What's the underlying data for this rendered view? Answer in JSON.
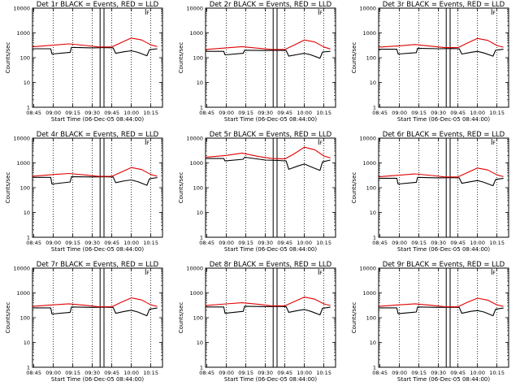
{
  "colors": {
    "events": "#000000",
    "lld": "#e00000",
    "axes": "#000000",
    "background": "#ffffff"
  },
  "chart_data": [
    {
      "type": "line",
      "title": "Det 1r BLACK = Events, RED = LLD",
      "xlabel": "Start Time (06-Dec-05 08:44:00)",
      "ylabel": "Counts/sec",
      "xticks": [
        "08:45",
        "09:00",
        "09:15",
        "09:30",
        "09:45",
        "10:00",
        "10:15"
      ],
      "yticks": [
        "1",
        "10",
        "100",
        "1000",
        "10000"
      ],
      "ylog": true,
      "ylim": [
        1,
        10000
      ],
      "flag_label": "F",
      "series": [
        {
          "color": "#000000",
          "x": [
            "08:44",
            "08:48",
            "08:58",
            "08:59",
            "09:13",
            "09:14",
            "09:30",
            "09:40",
            "09:46",
            "09:48",
            "09:55",
            "10:00",
            "10:05",
            "10:12",
            "10:14",
            "10:20"
          ],
          "y": [
            230,
            230,
            230,
            140,
            165,
            260,
            250,
            255,
            250,
            150,
            175,
            190,
            165,
            120,
            210,
            230
          ]
        },
        {
          "color": "#e00000",
          "x": [
            "08:44",
            "09:00",
            "09:12",
            "09:25",
            "09:35",
            "09:45",
            "09:52",
            "10:00",
            "10:08",
            "10:15",
            "10:20"
          ],
          "y": [
            275,
            320,
            360,
            310,
            270,
            270,
            400,
            620,
            520,
            330,
            280
          ]
        }
      ]
    },
    {
      "type": "line",
      "title": "Det 2r BLACK = Events, RED = LLD",
      "xlabel": "Start Time (06-Dec-05 08:44:00)",
      "ylabel": "Counts/sec",
      "xticks": [
        "08:45",
        "09:00",
        "09:15",
        "09:30",
        "09:45",
        "10:00",
        "10:15"
      ],
      "yticks": [
        "1",
        "10",
        "100",
        "1000",
        "10000"
      ],
      "ylog": true,
      "ylim": [
        1,
        10000
      ],
      "flag_label": "F",
      "series": [
        {
          "color": "#000000",
          "x": [
            "08:44",
            "08:48",
            "08:58",
            "08:59",
            "09:13",
            "09:14",
            "09:30",
            "09:40",
            "09:46",
            "09:48",
            "09:55",
            "10:00",
            "10:05",
            "10:12",
            "10:14",
            "10:20"
          ],
          "y": [
            180,
            180,
            180,
            130,
            150,
            200,
            195,
            200,
            195,
            115,
            135,
            150,
            130,
            95,
            170,
            180
          ]
        },
        {
          "color": "#e00000",
          "x": [
            "08:44",
            "09:00",
            "09:12",
            "09:25",
            "09:35",
            "09:45",
            "09:52",
            "10:00",
            "10:08",
            "10:15",
            "10:20"
          ],
          "y": [
            215,
            250,
            280,
            240,
            215,
            215,
            320,
            520,
            430,
            270,
            225
          ]
        }
      ]
    },
    {
      "type": "line",
      "title": "Det 3r BLACK = Events, RED = LLD",
      "xlabel": "Start Time (06-Dec-05 08:44:00)",
      "ylabel": "Counts/sec",
      "xticks": [
        "08:45",
        "09:00",
        "09:15",
        "09:30",
        "09:45",
        "10:00",
        "10:15"
      ],
      "yticks": [
        "1",
        "10",
        "100",
        "1000",
        "10000"
      ],
      "ylog": true,
      "ylim": [
        1,
        10000
      ],
      "flag_label": "F",
      "series": [
        {
          "color": "#000000",
          "x": [
            "08:44",
            "08:48",
            "08:58",
            "08:59",
            "09:13",
            "09:14",
            "09:30",
            "09:40",
            "09:46",
            "09:48",
            "09:55",
            "10:00",
            "10:05",
            "10:12",
            "10:14",
            "10:20"
          ],
          "y": [
            220,
            220,
            220,
            140,
            160,
            240,
            230,
            235,
            230,
            140,
            165,
            180,
            155,
            115,
            200,
            220
          ]
        },
        {
          "color": "#e00000",
          "x": [
            "08:44",
            "09:00",
            "09:12",
            "09:25",
            "09:35",
            "09:45",
            "09:52",
            "10:00",
            "10:08",
            "10:15",
            "10:20"
          ],
          "y": [
            265,
            300,
            340,
            290,
            255,
            255,
            380,
            600,
            500,
            310,
            265
          ]
        }
      ]
    },
    {
      "type": "line",
      "title": "Det 4r BLACK = Events, RED = LLD",
      "xlabel": "Start Time (06-Dec-05 08:44:00)",
      "ylabel": "Counts/sec",
      "xticks": [
        "08:45",
        "09:00",
        "09:15",
        "09:30",
        "09:45",
        "10:00",
        "10:15"
      ],
      "yticks": [
        "1",
        "10",
        "100",
        "1000",
        "10000"
      ],
      "ylog": true,
      "ylim": [
        1,
        10000
      ],
      "flag_label": "F",
      "series": [
        {
          "color": "#000000",
          "x": [
            "08:44",
            "08:48",
            "08:58",
            "08:59",
            "09:13",
            "09:14",
            "09:30",
            "09:40",
            "09:46",
            "09:48",
            "09:55",
            "10:00",
            "10:05",
            "10:12",
            "10:14",
            "10:20"
          ],
          "y": [
            260,
            260,
            260,
            140,
            170,
            280,
            270,
            275,
            270,
            160,
            190,
            205,
            175,
            125,
            230,
            255
          ]
        },
        {
          "color": "#e00000",
          "x": [
            "08:44",
            "09:00",
            "09:12",
            "09:25",
            "09:35",
            "09:45",
            "09:52",
            "10:00",
            "10:08",
            "10:15",
            "10:20"
          ],
          "y": [
            290,
            340,
            375,
            325,
            285,
            285,
            420,
            650,
            540,
            340,
            290
          ]
        }
      ]
    },
    {
      "type": "line",
      "title": "Det 5r BLACK = Events, RED = LLD",
      "xlabel": "Start Time (06-Dec-05 08:44:00)",
      "ylabel": "Counts/sec",
      "xticks": [
        "08:45",
        "09:00",
        "09:15",
        "09:30",
        "09:45",
        "10:00",
        "10:15"
      ],
      "yticks": [
        "1",
        "10",
        "100",
        "1000",
        "10000"
      ],
      "ylog": true,
      "ylim": [
        1,
        10000
      ],
      "flag_label": "F",
      "series": [
        {
          "color": "#000000",
          "x": [
            "08:44",
            "08:48",
            "08:58",
            "08:59",
            "09:13",
            "09:14",
            "09:30",
            "09:40",
            "09:46",
            "09:48",
            "09:55",
            "10:00",
            "10:05",
            "10:12",
            "10:14",
            "10:20"
          ],
          "y": [
            1500,
            1500,
            1500,
            1200,
            1400,
            1700,
            1300,
            1250,
            1200,
            550,
            750,
            900,
            700,
            500,
            1100,
            1300
          ]
        },
        {
          "color": "#e00000",
          "x": [
            "08:44",
            "09:00",
            "09:12",
            "09:25",
            "09:35",
            "09:45",
            "09:52",
            "10:00",
            "10:08",
            "10:15",
            "10:20"
          ],
          "y": [
            1700,
            2000,
            2500,
            1800,
            1500,
            1450,
            2300,
            4300,
            3400,
            1900,
            1600
          ]
        }
      ]
    },
    {
      "type": "line",
      "title": "Det 6r BLACK = Events, RED = LLD",
      "xlabel": "Start Time (06-Dec-05 08:44:00)",
      "ylabel": "Counts/sec",
      "xticks": [
        "08:45",
        "09:00",
        "09:15",
        "09:30",
        "09:45",
        "10:00",
        "10:15"
      ],
      "yticks": [
        "1",
        "10",
        "100",
        "1000",
        "10000"
      ],
      "ylog": true,
      "ylim": [
        1,
        10000
      ],
      "flag_label": "F",
      "series": [
        {
          "color": "#000000",
          "x": [
            "08:44",
            "08:48",
            "08:58",
            "08:59",
            "09:13",
            "09:14",
            "09:30",
            "09:40",
            "09:46",
            "09:48",
            "09:55",
            "10:00",
            "10:05",
            "10:12",
            "10:14",
            "10:20"
          ],
          "y": [
            240,
            240,
            240,
            140,
            165,
            260,
            250,
            255,
            250,
            150,
            175,
            195,
            165,
            120,
            215,
            240
          ]
        },
        {
          "color": "#e00000",
          "x": [
            "08:44",
            "09:00",
            "09:12",
            "09:25",
            "09:35",
            "09:45",
            "09:52",
            "10:00",
            "10:08",
            "10:15",
            "10:20"
          ],
          "y": [
            275,
            320,
            360,
            310,
            270,
            270,
            400,
            620,
            520,
            330,
            280
          ]
        }
      ]
    },
    {
      "type": "line",
      "title": "Det 7r BLACK = Events, RED = LLD",
      "xlabel": "Start Time (06-Dec-05 08:44:00)",
      "ylabel": "Counts/sec",
      "xticks": [
        "08:45",
        "09:00",
        "09:15",
        "09:30",
        "09:45",
        "10:00",
        "10:15"
      ],
      "yticks": [
        "1",
        "10",
        "100",
        "1000",
        "10000"
      ],
      "ylog": true,
      "ylim": [
        1,
        10000
      ],
      "flag_label": "F",
      "series": [
        {
          "color": "#000000",
          "x": [
            "08:44",
            "08:48",
            "08:58",
            "08:59",
            "09:13",
            "09:14",
            "09:30",
            "09:40",
            "09:46",
            "09:48",
            "09:55",
            "10:00",
            "10:05",
            "10:12",
            "10:14",
            "10:20"
          ],
          "y": [
            250,
            250,
            250,
            140,
            165,
            270,
            260,
            265,
            260,
            150,
            180,
            200,
            170,
            120,
            220,
            245
          ]
        },
        {
          "color": "#e00000",
          "x": [
            "08:44",
            "09:00",
            "09:12",
            "09:25",
            "09:35",
            "09:45",
            "09:52",
            "10:00",
            "10:08",
            "10:15",
            "10:20"
          ],
          "y": [
            285,
            330,
            365,
            315,
            275,
            275,
            410,
            630,
            520,
            330,
            285
          ]
        }
      ]
    },
    {
      "type": "line",
      "title": "Det 8r BLACK = Events, RED = LLD",
      "xlabel": "Start Time (06-Dec-05 08:44:00)",
      "ylabel": "Counts/sec",
      "xticks": [
        "08:45",
        "09:00",
        "09:15",
        "09:30",
        "09:45",
        "10:00",
        "10:15"
      ],
      "yticks": [
        "1",
        "10",
        "100",
        "1000",
        "10000"
      ],
      "ylog": true,
      "ylim": [
        1,
        10000
      ],
      "flag_label": "F",
      "series": [
        {
          "color": "#000000",
          "x": [
            "08:44",
            "08:48",
            "08:58",
            "08:59",
            "09:13",
            "09:14",
            "09:30",
            "09:40",
            "09:46",
            "09:48",
            "09:55",
            "10:00",
            "10:05",
            "10:12",
            "10:14",
            "10:20"
          ],
          "y": [
            270,
            270,
            270,
            150,
            180,
            290,
            280,
            285,
            280,
            165,
            195,
            215,
            180,
            130,
            240,
            265
          ]
        },
        {
          "color": "#e00000",
          "x": [
            "08:44",
            "09:00",
            "09:12",
            "09:25",
            "09:35",
            "09:45",
            "09:52",
            "10:00",
            "10:08",
            "10:15",
            "10:20"
          ],
          "y": [
            310,
            360,
            400,
            345,
            300,
            300,
            440,
            680,
            560,
            360,
            310
          ]
        }
      ]
    },
    {
      "type": "line",
      "title": "Det 9r BLACK = Events, RED = LLD",
      "xlabel": "Start Time (06-Dec-05 08:44:00)",
      "ylabel": "Counts/sec",
      "xticks": [
        "08:45",
        "09:00",
        "09:15",
        "09:30",
        "09:45",
        "10:00",
        "10:15"
      ],
      "yticks": [
        "1",
        "10",
        "100",
        "1000",
        "10000"
      ],
      "ylog": true,
      "ylim": [
        1,
        10000
      ],
      "flag_label": "F",
      "series": [
        {
          "color": "#000000",
          "x": [
            "08:44",
            "08:48",
            "08:58",
            "08:59",
            "09:13",
            "09:14",
            "09:30",
            "09:40",
            "09:46",
            "09:48",
            "09:55",
            "10:00",
            "10:05",
            "10:12",
            "10:14",
            "10:20"
          ],
          "y": [
            250,
            250,
            250,
            145,
            170,
            270,
            260,
            265,
            260,
            150,
            180,
            195,
            170,
            120,
            220,
            245
          ]
        },
        {
          "color": "#e00000",
          "x": [
            "08:44",
            "09:00",
            "09:12",
            "09:25",
            "09:35",
            "09:45",
            "09:52",
            "10:00",
            "10:08",
            "10:15",
            "10:20"
          ],
          "y": [
            285,
            330,
            365,
            315,
            275,
            275,
            410,
            610,
            510,
            330,
            285
          ]
        }
      ]
    }
  ]
}
